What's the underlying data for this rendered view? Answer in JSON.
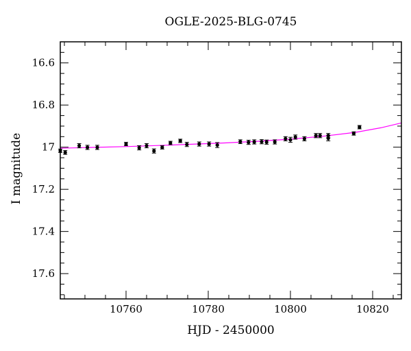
{
  "chart_data": {
    "type": "scatter",
    "title": "OGLE-2025-BLG-0745",
    "xlabel": "HJD - 2450000",
    "ylabel": "I magnitude",
    "xlim": [
      10744,
      10827
    ],
    "ylim": [
      17.72,
      16.5
    ],
    "y_inverted": true,
    "grid": false,
    "x_ticks": [
      10760,
      10780,
      10800,
      10820
    ],
    "x_tick_labels": [
      "10760",
      "10780",
      "10800",
      "10820"
    ],
    "y_ticks": [
      16.6,
      16.8,
      17.0,
      17.2,
      17.4,
      17.6
    ],
    "y_tick_labels": [
      "16.6",
      "16.8",
      "17",
      "17.2",
      "17.4",
      "17.6"
    ],
    "marker_color": "#000000",
    "model_color": "#ff00ff",
    "series": [
      {
        "points": [
          {
            "x": 10744.0,
            "y": 17.017,
            "err": 0.008
          },
          {
            "x": 10745.2,
            "y": 17.025,
            "err": 0.009
          },
          {
            "x": 10748.6,
            "y": 16.993,
            "err": 0.01
          },
          {
            "x": 10750.6,
            "y": 17.001,
            "err": 0.01
          },
          {
            "x": 10753.0,
            "y": 17.001,
            "err": 0.01
          },
          {
            "x": 10760.0,
            "y": 16.985,
            "err": 0.008
          },
          {
            "x": 10763.2,
            "y": 17.003,
            "err": 0.01
          },
          {
            "x": 10765.0,
            "y": 16.993,
            "err": 0.01
          },
          {
            "x": 10766.8,
            "y": 17.018,
            "err": 0.01
          },
          {
            "x": 10768.8,
            "y": 17.001,
            "err": 0.008
          },
          {
            "x": 10770.8,
            "y": 16.98,
            "err": 0.008
          },
          {
            "x": 10773.2,
            "y": 16.97,
            "err": 0.008
          },
          {
            "x": 10774.8,
            "y": 16.987,
            "err": 0.01
          },
          {
            "x": 10777.8,
            "y": 16.985,
            "err": 0.01
          },
          {
            "x": 10780.2,
            "y": 16.985,
            "err": 0.01
          },
          {
            "x": 10782.2,
            "y": 16.99,
            "err": 0.012
          },
          {
            "x": 10787.8,
            "y": 16.974,
            "err": 0.009
          },
          {
            "x": 10789.8,
            "y": 16.977,
            "err": 0.01
          },
          {
            "x": 10791.2,
            "y": 16.975,
            "err": 0.01
          },
          {
            "x": 10793.0,
            "y": 16.974,
            "err": 0.01
          },
          {
            "x": 10794.2,
            "y": 16.976,
            "err": 0.01
          },
          {
            "x": 10796.2,
            "y": 16.975,
            "err": 0.01
          },
          {
            "x": 10798.8,
            "y": 16.96,
            "err": 0.01
          },
          {
            "x": 10800.0,
            "y": 16.965,
            "err": 0.012
          },
          {
            "x": 10801.2,
            "y": 16.952,
            "err": 0.01
          },
          {
            "x": 10803.4,
            "y": 16.96,
            "err": 0.01
          },
          {
            "x": 10806.2,
            "y": 16.945,
            "err": 0.01
          },
          {
            "x": 10807.2,
            "y": 16.945,
            "err": 0.01
          },
          {
            "x": 10809.2,
            "y": 16.945,
            "err": 0.01
          },
          {
            "x": 10809.2,
            "y": 16.958,
            "err": 0.012
          },
          {
            "x": 10815.4,
            "y": 16.935,
            "err": 0.008
          },
          {
            "x": 10816.8,
            "y": 16.905,
            "err": 0.008
          }
        ]
      }
    ],
    "model": {
      "x": [
        10744,
        10752,
        10760,
        10768,
        10776,
        10784,
        10792,
        10800,
        10808,
        10816,
        10822,
        10827
      ],
      "y": [
        17.005,
        17.001,
        16.997,
        16.992,
        16.986,
        16.98,
        16.972,
        16.962,
        16.948,
        16.929,
        16.908,
        16.885
      ]
    }
  }
}
